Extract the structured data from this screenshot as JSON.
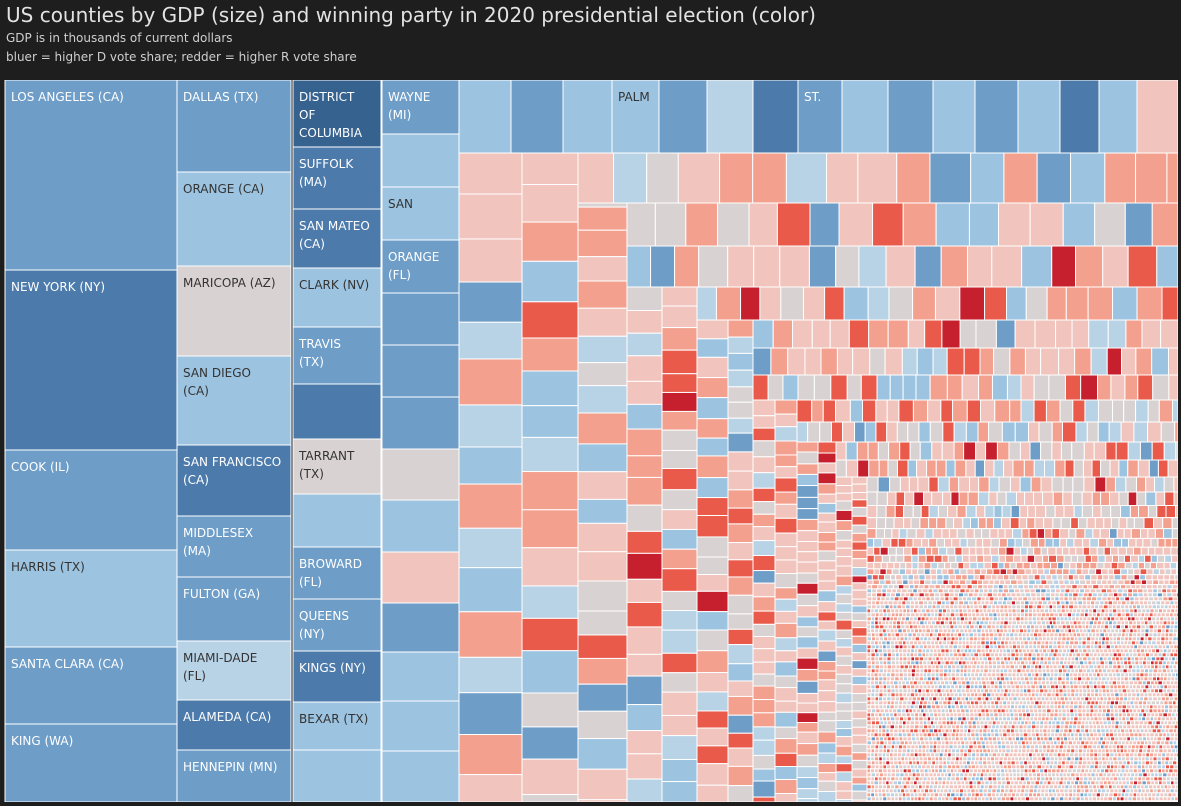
{
  "header": {
    "title": "US counties by GDP (size) and winning party in 2020 presidential election (color)",
    "subtitle": "GDP is in thousands of current dollars",
    "note": "bluer = higher D vote share; redder = higher R vote share"
  },
  "colors": {
    "background": "#1e1e1e",
    "deep_blue": "#36628f",
    "blue": "#4b7aab",
    "mid_blue": "#6e9dc8",
    "light_blue": "#9cc3e0",
    "pale_blue": "#b8d2e6",
    "neutral": "#d9d2d2",
    "pale_red": "#f1c4bd",
    "light_red": "#f4a08f",
    "red": "#ea5a4b",
    "deep_red": "#c61f2d"
  },
  "chart_data": {
    "type": "treemap",
    "size_measure": "GDP (thousands of current dollars)",
    "color_measure": "2020 presidential vote share (blue = D, red = R)",
    "labeled_counties": [
      {
        "label": "LOS ANGELES (CA)",
        "color": "mid_blue"
      },
      {
        "label": "NEW YORK (NY)",
        "color": "blue"
      },
      {
        "label": "COOK (IL)",
        "color": "mid_blue"
      },
      {
        "label": "HARRIS (TX)",
        "color": "light_blue"
      },
      {
        "label": "SANTA CLARA (CA)",
        "color": "mid_blue"
      },
      {
        "label": "KING (WA)",
        "color": "mid_blue"
      },
      {
        "label": "DALLAS (TX)",
        "color": "mid_blue"
      },
      {
        "label": "ORANGE (CA)",
        "color": "light_blue"
      },
      {
        "label": "MARICOPA (AZ)",
        "color": "neutral"
      },
      {
        "label": "SAN DIEGO (CA)",
        "color": "light_blue"
      },
      {
        "label": "SAN FRANCISCO (CA)",
        "color": "blue"
      },
      {
        "label": "MIDDLESEX (MA)",
        "color": "mid_blue"
      },
      {
        "label": "FULTON (GA)",
        "color": "mid_blue"
      },
      {
        "label": "MIAMI-DADE (FL)",
        "color": "pale_blue"
      },
      {
        "label": "ALAMEDA (CA)",
        "color": "blue"
      },
      {
        "label": "HENNEPIN (MN)",
        "color": "mid_blue"
      },
      {
        "label": "DISTRICT OF COLUMBIA",
        "color": "deep_blue"
      },
      {
        "label": "SUFFOLK (MA)",
        "color": "blue"
      },
      {
        "label": "SAN MATEO (CA)",
        "color": "blue"
      },
      {
        "label": "CLARK (NV)",
        "color": "light_blue"
      },
      {
        "label": "TRAVIS (TX)",
        "color": "mid_blue"
      },
      {
        "label": "TARRANT (TX)",
        "color": "neutral"
      },
      {
        "label": "BROWARD (FL)",
        "color": "mid_blue"
      },
      {
        "label": "QUEENS (NY)",
        "color": "mid_blue"
      },
      {
        "label": "KINGS (NY)",
        "color": "blue"
      },
      {
        "label": "BEXAR (TX)",
        "color": "light_blue"
      },
      {
        "label": "WAYNE (MI)",
        "color": "mid_blue"
      },
      {
        "label": "SAN",
        "color": "light_blue"
      },
      {
        "label": "ORANGE (FL)",
        "color": "mid_blue"
      },
      {
        "label": "PALM",
        "color": "light_blue"
      },
      {
        "label": "ST.",
        "color": "mid_blue"
      }
    ]
  }
}
